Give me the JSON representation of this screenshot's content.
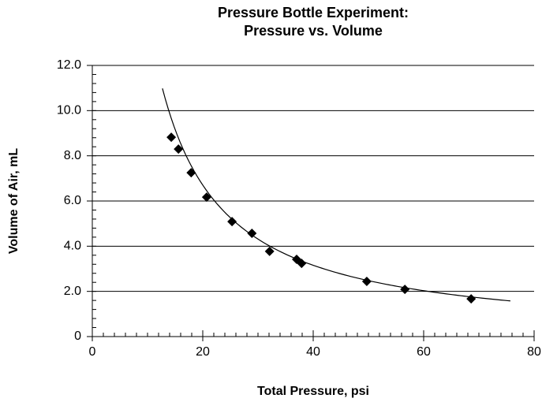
{
  "chart_data": {
    "type": "scatter",
    "title": [
      "Pressure Bottle Experiment:",
      "Pressure vs. Volume"
    ],
    "x_label": "Total Pressure, psi",
    "y_label": "Volume of Air, mL",
    "color": "#000000",
    "series": [
      {
        "x": [
          14.3,
          15.6,
          17.9,
          20.7,
          25.3,
          28.9,
          32.1,
          37.0,
          37.9,
          49.7,
          56.6,
          68.6
        ],
        "values": [
          8.82,
          8.3,
          7.25,
          6.17,
          5.09,
          4.57,
          3.77,
          3.42,
          3.24,
          2.44,
          2.09,
          1.67
        ]
      }
    ],
    "trendline": {
      "type": "power",
      "coefficient": 174,
      "exponent": -1.087,
      "x_range": [
        12.7,
        75.7
      ]
    },
    "xlim": [
      0,
      80
    ],
    "xticks": [
      0,
      20,
      40,
      60,
      80
    ],
    "ylim": [
      0,
      12
    ],
    "yticks": [
      0,
      {
        "value": 2,
        "label": "2.0"
      },
      {
        "value": 4,
        "label": "4.0"
      },
      {
        "value": 6,
        "label": "6.0"
      },
      {
        "value": 8,
        "label": "8.0"
      },
      {
        "value": 10,
        "label": "10.0"
      },
      {
        "value": 12,
        "label": "12.0"
      }
    ],
    "x_minor_step": 2,
    "y_minor_step": 0.4,
    "grid": true
  }
}
